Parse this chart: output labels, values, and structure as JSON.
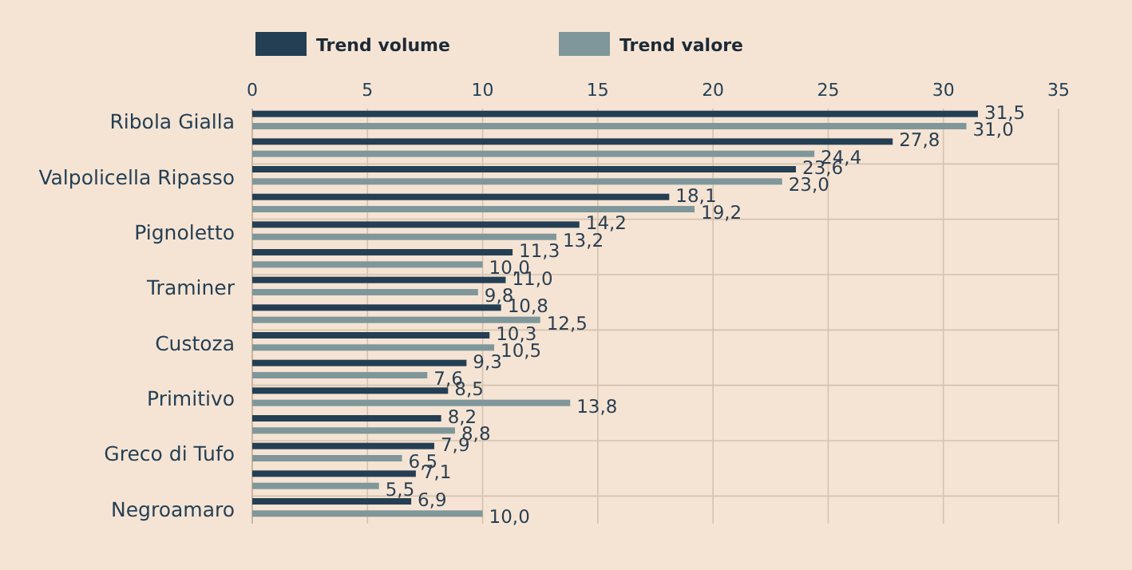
{
  "chart_data": {
    "type": "bar",
    "orientation": "horizontal",
    "categories": [
      "Ribola Gialla",
      null,
      "Valpolicella Ripasso",
      null,
      "Pignoletto",
      null,
      "Traminer",
      null,
      "Custoza",
      null,
      "Primitivo",
      null,
      "Greco di Tufo",
      null,
      "Negroamaro"
    ],
    "series": [
      {
        "name": "Trend volume",
        "color": "#243f54",
        "values": [
          31.5,
          27.8,
          23.6,
          18.1,
          14.2,
          11.3,
          11.0,
          10.8,
          10.3,
          9.3,
          8.5,
          8.2,
          7.9,
          7.1,
          6.9
        ],
        "value_labels": [
          "31,5",
          "27,8",
          "23,6",
          "18,1",
          "14,2",
          "11,3",
          "11,0",
          "10,8",
          "10,3",
          "9,3",
          "8,5",
          "8,2",
          "7,9",
          "7,1",
          "6,9"
        ]
      },
      {
        "name": "Trend valore",
        "color": "#7f979a",
        "values": [
          31.0,
          24.4,
          23.0,
          19.2,
          13.2,
          10.0,
          9.8,
          12.5,
          10.5,
          7.6,
          13.8,
          8.8,
          6.5,
          5.5,
          10.0
        ],
        "value_labels": [
          "31,0",
          "24,4",
          "23,0",
          "19,2",
          "13,2",
          "10,0",
          "9,8",
          "12,5",
          "10,5",
          "7,6",
          "13,8",
          "8,8",
          "6,5",
          "5,5",
          "10,0"
        ]
      }
    ],
    "xlim": [
      0,
      35
    ],
    "xticks": [
      0,
      5,
      10,
      15,
      20,
      25,
      30,
      35
    ],
    "grid": true,
    "legend": "top"
  }
}
